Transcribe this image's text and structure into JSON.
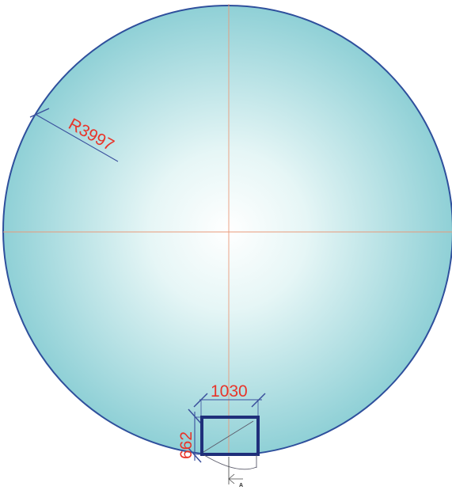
{
  "drawing": {
    "radius_label": "R3997",
    "width_label": "1030",
    "height_label": "662",
    "section_label": "A"
  },
  "colors": {
    "circle_outline": "#2e4f9c",
    "fill_center": "#ffffff",
    "fill_edge": "#8fd0d6",
    "centerline": "#e89a7a",
    "dimension_text": "#e8342a",
    "dimension_line": "#3a4f9c",
    "frame": "#1f2f7a"
  }
}
